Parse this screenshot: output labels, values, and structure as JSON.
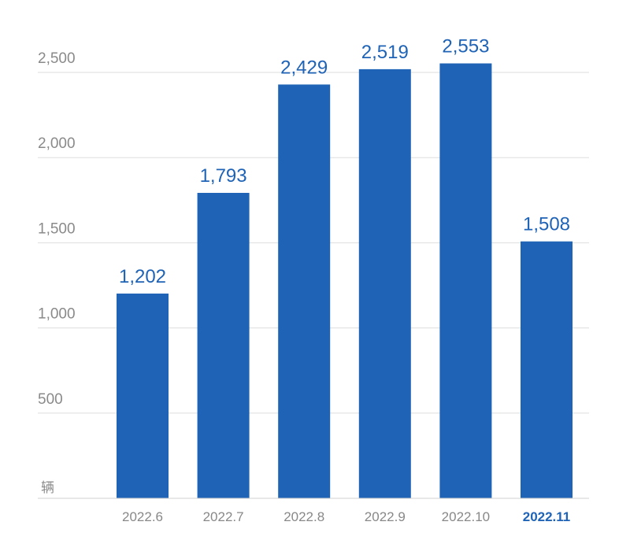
{
  "chart_data": {
    "type": "bar",
    "unit": "辆",
    "categories": [
      "2022.6",
      "2022.7",
      "2022.8",
      "2022.9",
      "2022.10",
      "2022.11"
    ],
    "values": [
      1202,
      1793,
      2429,
      2519,
      2553,
      1508
    ],
    "value_labels": [
      "1,202",
      "1,793",
      "2,429",
      "2,519",
      "2,553",
      "1,508"
    ],
    "y_ticks": [
      500,
      1000,
      1500,
      2000,
      2500
    ],
    "y_tick_labels": [
      "500",
      "1,000",
      "1,500",
      "2,000",
      "2,500"
    ],
    "ylim": [
      0,
      2500
    ],
    "grid": true,
    "highlight_category": "2022.11",
    "colors": {
      "bar": "#1f63b6",
      "label": "#1f63b6",
      "highlight_tick": "#1f63b6",
      "grid": "#dddddd"
    }
  }
}
